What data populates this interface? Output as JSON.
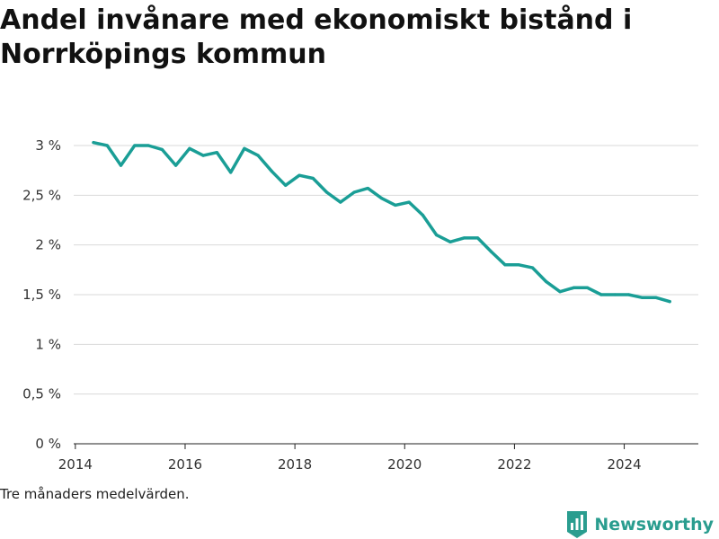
{
  "title": "Andel invånare med ekonomiskt bistånd i Norrköpings kommun",
  "footnote": "Tre månaders medelvärden.",
  "brand": {
    "name": "Newsworthy",
    "logo_icon": "bar-chart-logo-icon",
    "color": "#2a9d8f"
  },
  "chart_data": {
    "type": "line",
    "title": "Andel invånare med ekonomiskt bistånd i Norrköpings kommun",
    "xlabel": "",
    "ylabel": "",
    "xlim": [
      2013.97,
      2025.35
    ],
    "ylim": [
      0,
      3
    ],
    "x_ticks": [
      2014,
      2016,
      2018,
      2020,
      2022,
      2024
    ],
    "x_tick_labels": [
      "2014",
      "2016",
      "2018",
      "2020",
      "2022",
      "2024"
    ],
    "y_ticks": [
      0,
      0.5,
      1,
      1.5,
      2,
      2.5,
      3
    ],
    "y_tick_labels": [
      "0 %",
      "0,5 %",
      "1 %",
      "1,5 %",
      "2 %",
      "2,5 %",
      "3 %"
    ],
    "grid": true,
    "legend": "none",
    "line_color": "#1a9e96",
    "series": [
      {
        "x": [
          2014.33,
          2014.58,
          2014.83,
          2015.08,
          2015.33,
          2015.58,
          2015.83,
          2016.08,
          2016.33,
          2016.58,
          2016.83,
          2017.08,
          2017.33,
          2017.58,
          2017.83,
          2018.08,
          2018.33,
          2018.58,
          2018.83,
          2019.08,
          2019.33,
          2019.58,
          2019.83,
          2020.08,
          2020.33,
          2020.58,
          2020.83,
          2021.08,
          2021.33,
          2021.58,
          2021.83,
          2022.08,
          2022.33,
          2022.58,
          2022.83,
          2023.08,
          2023.33,
          2023.58,
          2023.83,
          2024.08,
          2024.33,
          2024.58,
          2024.83
        ],
        "values": [
          3.03,
          3.0,
          2.8,
          3.0,
          3.0,
          2.96,
          2.8,
          2.97,
          2.9,
          2.93,
          2.73,
          2.97,
          2.9,
          2.74,
          2.6,
          2.7,
          2.67,
          2.53,
          2.43,
          2.53,
          2.57,
          2.47,
          2.4,
          2.43,
          2.3,
          2.1,
          2.03,
          2.07,
          2.07,
          1.93,
          1.8,
          1.8,
          1.77,
          1.63,
          1.53,
          1.57,
          1.57,
          1.5,
          1.5,
          1.5,
          1.47,
          1.47,
          1.43
        ]
      }
    ]
  }
}
